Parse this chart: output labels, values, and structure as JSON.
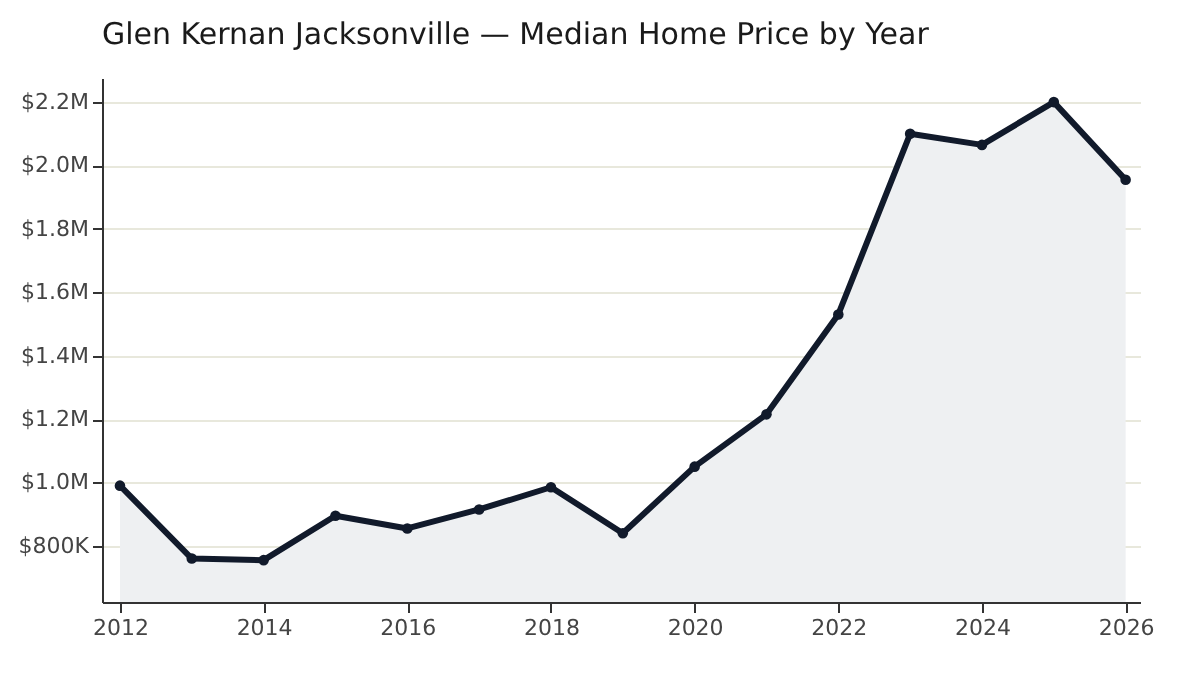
{
  "chart_data": {
    "type": "area",
    "title": "Glen Kernan Jacksonville — Median Home Price by Year",
    "x": [
      2012,
      2013,
      2014,
      2015,
      2016,
      2017,
      2018,
      2019,
      2020,
      2021,
      2022,
      2023,
      2024,
      2025,
      2026
    ],
    "series": [
      {
        "color": "#111a2b",
        "values": [
          990000,
          760000,
          755000,
          895000,
          855000,
          915000,
          985000,
          840000,
          1050000,
          1215000,
          1530000,
          2100000,
          2065000,
          2200000,
          1955000
        ]
      }
    ],
    "xlim": [
      2011.75,
      2026.2
    ],
    "xticks": [
      2012,
      2014,
      2016,
      2018,
      2020,
      2022,
      2024,
      2026
    ],
    "ylim": [
      623000,
      2276000
    ],
    "yticks": [
      {
        "value": 800000,
        "label": "$800K"
      },
      {
        "value": 1000000,
        "label": "$1.0M"
      },
      {
        "value": 1200000,
        "label": "$1.2M"
      },
      {
        "value": 1400000,
        "label": "$1.4M"
      },
      {
        "value": 1600000,
        "label": "$1.6M"
      },
      {
        "value": 1800000,
        "label": "$1.8M"
      },
      {
        "value": 2000000,
        "label": "$2.0M"
      },
      {
        "value": 2200000,
        "label": "$2.2M"
      }
    ],
    "grid": "y",
    "marker": "circle",
    "line_style": "solid"
  }
}
